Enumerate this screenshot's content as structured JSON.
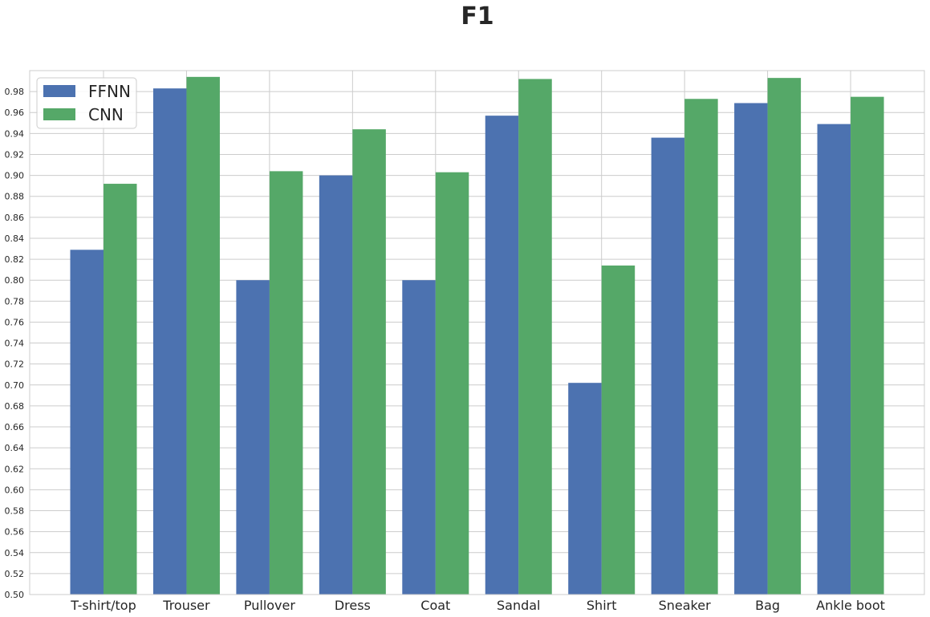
{
  "chart_data": {
    "type": "bar",
    "title": "F1",
    "xlabel": "",
    "ylabel": "",
    "ylim": [
      0.5,
      1.0
    ],
    "grid": true,
    "legend_position": "top-left",
    "categories": [
      "T-shirt/top",
      "Trouser",
      "Pullover",
      "Dress",
      "Coat",
      "Sandal",
      "Shirt",
      "Sneaker",
      "Bag",
      "Ankle boot"
    ],
    "yticks": [
      "0.50",
      "0.52",
      "0.54",
      "0.56",
      "0.58",
      "0.60",
      "0.62",
      "0.64",
      "0.66",
      "0.68",
      "0.70",
      "0.72",
      "0.74",
      "0.76",
      "0.78",
      "0.80",
      "0.82",
      "0.84",
      "0.86",
      "0.88",
      "0.90",
      "0.92",
      "0.94",
      "0.96",
      "0.98"
    ],
    "series": [
      {
        "name": "FFNN",
        "color": "#4c72b0",
        "values": [
          0.829,
          0.983,
          0.8,
          0.9,
          0.8,
          0.957,
          0.702,
          0.936,
          0.969,
          0.949
        ]
      },
      {
        "name": "CNN",
        "color": "#55a868",
        "values": [
          0.892,
          0.994,
          0.904,
          0.944,
          0.903,
          0.992,
          0.814,
          0.973,
          0.993,
          0.975
        ]
      }
    ]
  }
}
